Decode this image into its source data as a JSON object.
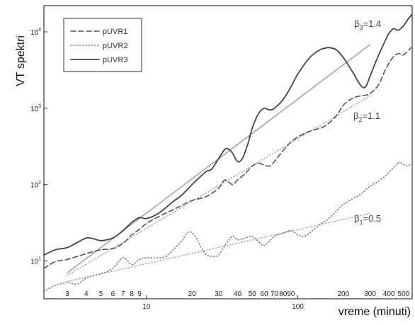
{
  "chart_data": {
    "type": "line",
    "title": "",
    "xlabel": "vreme (minuti)",
    "ylabel": "VT spektri",
    "x_scale": "log",
    "y_scale": "log",
    "xlim": [
      2.1,
      570
    ],
    "ylim": [
      3.2,
      22000
    ],
    "x_major_ticks": [
      {
        "value": 10,
        "label": "10"
      },
      {
        "value": 100,
        "label": "100"
      }
    ],
    "x_minor_ticks": [
      {
        "value": 3,
        "label": "3"
      },
      {
        "value": 4,
        "label": "4"
      },
      {
        "value": 5,
        "label": "5"
      },
      {
        "value": 6,
        "label": "6"
      },
      {
        "value": 7,
        "label": "7"
      },
      {
        "value": 8,
        "label": "8"
      },
      {
        "value": 9,
        "label": "9"
      },
      {
        "value": 20,
        "label": "20"
      },
      {
        "value": 30,
        "label": "30"
      },
      {
        "value": 40,
        "label": "40"
      },
      {
        "value": 50,
        "label": "50"
      },
      {
        "value": 60,
        "label": "60"
      },
      {
        "value": 70,
        "label": "70"
      },
      {
        "value": 80,
        "label": "80"
      },
      {
        "value": 90,
        "label": "90"
      },
      {
        "value": 200,
        "label": "200"
      },
      {
        "value": 300,
        "label": "300"
      },
      {
        "value": 400,
        "label": "400"
      },
      {
        "value": 500,
        "label": "500"
      }
    ],
    "y_ticks": [
      {
        "value": 10,
        "base": "10",
        "exp": "1"
      },
      {
        "value": 100,
        "base": "10",
        "exp": "2"
      },
      {
        "value": 1000,
        "base": "10",
        "exp": "3"
      },
      {
        "value": 10000,
        "base": "10",
        "exp": "4"
      }
    ],
    "legend_position": "top-left",
    "series": [
      {
        "name": "pUVR1",
        "style": "dashed",
        "color": "#555555",
        "points": [
          [
            2.1,
            8.0
          ],
          [
            2.5,
            9.8
          ],
          [
            3,
            10.5
          ],
          [
            3.5,
            11.5
          ],
          [
            4,
            12.5
          ],
          [
            5,
            14
          ],
          [
            6,
            14.5
          ],
          [
            7,
            17
          ],
          [
            8,
            22
          ],
          [
            9,
            26
          ],
          [
            10,
            31
          ],
          [
            12,
            38
          ],
          [
            15,
            47
          ],
          [
            17,
            53
          ],
          [
            20,
            62
          ],
          [
            25,
            70
          ],
          [
            30,
            90
          ],
          [
            33,
            115
          ],
          [
            37,
            100
          ],
          [
            40,
            115
          ],
          [
            45,
            140
          ],
          [
            50,
            175
          ],
          [
            55,
            190
          ],
          [
            60,
            180
          ],
          [
            65,
            175
          ],
          [
            70,
            200
          ],
          [
            80,
            280
          ],
          [
            90,
            360
          ],
          [
            100,
            420
          ],
          [
            120,
            500
          ],
          [
            150,
            580
          ],
          [
            180,
            800
          ],
          [
            200,
            1100
          ],
          [
            230,
            1350
          ],
          [
            260,
            1450
          ],
          [
            280,
            1480
          ],
          [
            300,
            1550
          ],
          [
            340,
            2000
          ],
          [
            380,
            3200
          ],
          [
            420,
            4500
          ],
          [
            460,
            5200
          ],
          [
            500,
            5000
          ],
          [
            560,
            6200
          ]
        ]
      },
      {
        "name": "pUVR2",
        "style": "dotted",
        "color": "#777777",
        "points": [
          [
            2.1,
            4.0
          ],
          [
            2.5,
            4.8
          ],
          [
            3,
            5.2
          ],
          [
            3.5,
            5.0
          ],
          [
            4,
            6.0
          ],
          [
            5,
            6.8
          ],
          [
            6,
            8.0
          ],
          [
            7,
            11
          ],
          [
            8,
            9.0
          ],
          [
            9,
            10.5
          ],
          [
            10,
            11
          ],
          [
            13,
            11.2
          ],
          [
            15,
            14
          ],
          [
            17,
            18
          ],
          [
            19,
            24
          ],
          [
            21,
            21
          ],
          [
            23,
            15
          ],
          [
            25,
            12
          ],
          [
            28,
            11.5
          ],
          [
            30,
            12
          ],
          [
            33,
            16
          ],
          [
            37,
            21
          ],
          [
            40,
            19
          ],
          [
            45,
            20
          ],
          [
            50,
            21
          ],
          [
            55,
            18
          ],
          [
            60,
            16
          ],
          [
            70,
            21
          ],
          [
            80,
            23
          ],
          [
            90,
            25
          ],
          [
            100,
            22
          ],
          [
            110,
            21
          ],
          [
            125,
            25
          ],
          [
            140,
            30
          ],
          [
            160,
            36
          ],
          [
            180,
            45
          ],
          [
            200,
            55
          ],
          [
            230,
            65
          ],
          [
            260,
            75
          ],
          [
            300,
            95
          ],
          [
            340,
            110
          ],
          [
            380,
            130
          ],
          [
            420,
            160
          ],
          [
            470,
            195
          ],
          [
            520,
            175
          ],
          [
            560,
            185
          ]
        ]
      },
      {
        "name": "pUVR3",
        "style": "solid",
        "color": "#444444",
        "points": [
          [
            2.1,
            12.0
          ],
          [
            2.5,
            14
          ],
          [
            3,
            15
          ],
          [
            3.5,
            17.5
          ],
          [
            4,
            20
          ],
          [
            4.5,
            19.5
          ],
          [
            5,
            18.5
          ],
          [
            6,
            20
          ],
          [
            7,
            25
          ],
          [
            8,
            32
          ],
          [
            9,
            37
          ],
          [
            10,
            36
          ],
          [
            12,
            42
          ],
          [
            15,
            60
          ],
          [
            17,
            72
          ],
          [
            20,
            100
          ],
          [
            23,
            130
          ],
          [
            25,
            150
          ],
          [
            27,
            160
          ],
          [
            30,
            220
          ],
          [
            33,
            290
          ],
          [
            35,
            290
          ],
          [
            37,
            260
          ],
          [
            40,
            200
          ],
          [
            43,
            220
          ],
          [
            47,
            350
          ],
          [
            50,
            550
          ],
          [
            55,
            850
          ],
          [
            60,
            1000
          ],
          [
            65,
            950
          ],
          [
            70,
            1000
          ],
          [
            80,
            1300
          ],
          [
            90,
            1900
          ],
          [
            100,
            2800
          ],
          [
            120,
            4600
          ],
          [
            140,
            5800
          ],
          [
            160,
            6200
          ],
          [
            180,
            5800
          ],
          [
            200,
            4600
          ],
          [
            230,
            3000
          ],
          [
            260,
            2000
          ],
          [
            280,
            1900
          ],
          [
            300,
            2600
          ],
          [
            330,
            4200
          ],
          [
            370,
            7000
          ],
          [
            400,
            9500
          ],
          [
            430,
            11000
          ],
          [
            460,
            10500
          ],
          [
            500,
            12000
          ],
          [
            540,
            15000
          ],
          [
            570,
            17000
          ]
        ]
      }
    ],
    "fit_lines": [
      {
        "label": "β3=1.4",
        "slope": 1.4,
        "from": [
          3,
          7
        ],
        "to": [
          300,
          6800
        ],
        "color": "#9a9a9a",
        "style": "solid"
      },
      {
        "label": "β2=1.1",
        "slope": 1.1,
        "from": [
          3,
          6.5
        ],
        "to": [
          300,
          1450
        ],
        "color": "#9a9a9a",
        "style": "dotted"
      },
      {
        "label": "β1=0.5",
        "slope": 0.5,
        "from": [
          3,
          5.4
        ],
        "to": [
          300,
          42
        ],
        "color": "#9a9a9a",
        "style": "dotted"
      }
    ],
    "annotations": [
      {
        "name": "beta3",
        "symbol": "β",
        "sub": "3",
        "value": "=1.4"
      },
      {
        "name": "beta2",
        "symbol": "β",
        "sub": "2",
        "value": "=1.1"
      },
      {
        "name": "beta1",
        "symbol": "β",
        "sub": "1",
        "value": "=0.5"
      }
    ]
  }
}
